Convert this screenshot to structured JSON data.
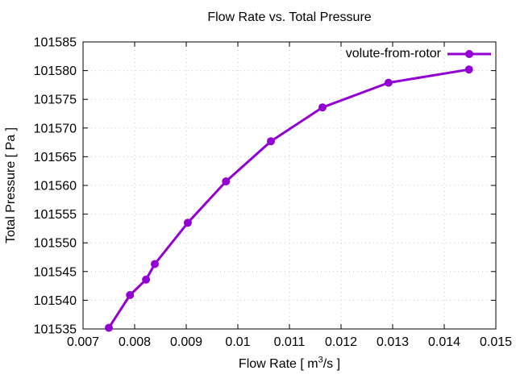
{
  "chart_data": {
    "type": "line",
    "title": "Flow Rate vs. Total Pressure",
    "xlabel_parts": {
      "prefix": "Flow Rate [ m",
      "sup": "3",
      "suffix": "/s ]"
    },
    "ylabel": "Total Pressure [ Pa ]",
    "xlim": [
      0.007,
      0.015
    ],
    "ylim": [
      101535,
      101585
    ],
    "xticks": {
      "values": [
        0.007,
        0.008,
        0.009,
        0.01,
        0.011,
        0.012,
        0.013,
        0.014,
        0.015
      ],
      "labels": [
        "0.007",
        "0.008",
        "0.009",
        "0.01",
        "0.011",
        "0.012",
        "0.013",
        "0.014",
        "0.015"
      ]
    },
    "yticks": {
      "values": [
        101535,
        101540,
        101545,
        101550,
        101555,
        101560,
        101565,
        101570,
        101575,
        101580,
        101585
      ],
      "labels": [
        "101535",
        "101540",
        "101545",
        "101550",
        "101555",
        "101560",
        "101565",
        "101570",
        "101575",
        "101580",
        "101585"
      ]
    },
    "grid": true,
    "legend_position": "top-right-inside",
    "series": [
      {
        "name": "volute-from-rotor",
        "color": "#9400d3",
        "marker": "filled-circle",
        "points": [
          [
            0.0075,
            101535.2
          ],
          [
            0.00791,
            101540.9
          ],
          [
            0.00822,
            101543.6
          ],
          [
            0.00839,
            101546.3
          ],
          [
            0.00903,
            101553.5
          ],
          [
            0.00977,
            101560.7
          ],
          [
            0.01064,
            101567.7
          ],
          [
            0.01164,
            101573.6
          ],
          [
            0.01292,
            101577.9
          ],
          [
            0.01448,
            101580.2
          ]
        ]
      }
    ],
    "colors": {
      "background": "#ffffff",
      "axis": "#000000",
      "text": "#000000",
      "grid": "#c8c8c8"
    }
  }
}
